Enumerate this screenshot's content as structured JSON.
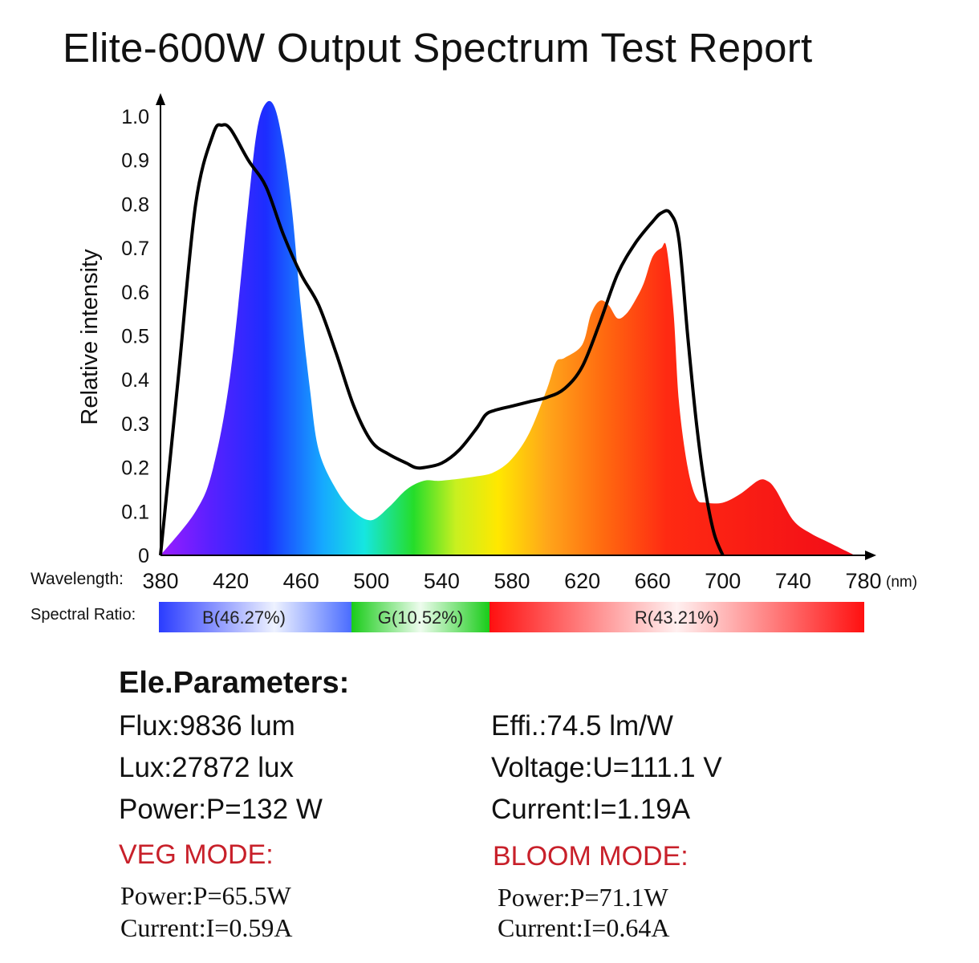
{
  "title": "Elite-600W Output Spectrum Test Report",
  "chart_data": {
    "type": "area",
    "title": "Elite-600W Output Spectrum Test Report",
    "xlabel": "Wavelength:",
    "x_unit": "(nm)",
    "ylabel": "Relative intensity",
    "xlim": [
      380,
      780
    ],
    "ylim": [
      0,
      1.0
    ],
    "x_ticks": [
      380,
      420,
      460,
      500,
      540,
      580,
      620,
      660,
      700,
      740,
      780
    ],
    "y_ticks": [
      0,
      0.1,
      0.2,
      0.3,
      0.4,
      0.5,
      0.6,
      0.7,
      0.8,
      0.9,
      1.0
    ],
    "y_tick_labels": [
      "0",
      "0.1",
      "0.2",
      "0.3",
      "0.4",
      "0.5",
      "0.6",
      "0.7",
      "0.8",
      "0.9",
      "1.0"
    ],
    "series": [
      {
        "style": "filled-rainbow",
        "x": [
          380,
          400,
          410,
          420,
          430,
          435,
          440,
          445,
          450,
          455,
          460,
          465,
          470,
          480,
          490,
          500,
          510,
          520,
          530,
          540,
          560,
          570,
          580,
          590,
          600,
          605,
          610,
          620,
          625,
          630,
          635,
          640,
          645,
          650,
          655,
          660,
          665,
          668,
          672,
          675,
          680,
          685,
          690,
          700,
          710,
          720,
          725,
          730,
          740,
          750,
          760,
          770,
          775
        ],
        "y": [
          0,
          0.1,
          0.2,
          0.42,
          0.8,
          0.97,
          1.03,
          1.02,
          0.93,
          0.78,
          0.56,
          0.38,
          0.24,
          0.15,
          0.1,
          0.08,
          0.11,
          0.15,
          0.17,
          0.17,
          0.18,
          0.19,
          0.22,
          0.28,
          0.38,
          0.44,
          0.45,
          0.48,
          0.55,
          0.58,
          0.57,
          0.54,
          0.55,
          0.58,
          0.62,
          0.68,
          0.7,
          0.7,
          0.55,
          0.35,
          0.2,
          0.13,
          0.12,
          0.12,
          0.14,
          0.17,
          0.17,
          0.15,
          0.08,
          0.05,
          0.03,
          0.01,
          0
        ]
      },
      {
        "style": "black-line",
        "x": [
          380,
          390,
          400,
          410,
          415,
          420,
          430,
          440,
          450,
          460,
          470,
          480,
          490,
          500,
          510,
          520,
          525,
          530,
          540,
          550,
          560,
          565,
          570,
          580,
          590,
          600,
          610,
          620,
          630,
          640,
          650,
          660,
          665,
          670,
          675,
          680,
          685,
          690,
          695,
          700
        ],
        "y": [
          0,
          0.4,
          0.8,
          0.96,
          0.98,
          0.97,
          0.9,
          0.84,
          0.73,
          0.64,
          0.57,
          0.46,
          0.34,
          0.26,
          0.23,
          0.21,
          0.2,
          0.2,
          0.21,
          0.24,
          0.29,
          0.32,
          0.33,
          0.34,
          0.35,
          0.36,
          0.38,
          0.43,
          0.53,
          0.64,
          0.71,
          0.76,
          0.78,
          0.78,
          0.72,
          0.5,
          0.3,
          0.15,
          0.05,
          0
        ]
      }
    ],
    "spectral_ratio": {
      "label": "Spectral Ratio:",
      "segments": [
        {
          "label": "B(46.27%)",
          "color": "#2c3cff"
        },
        {
          "label": "G(10.52%)",
          "color": "#1ed21e"
        },
        {
          "label": "R(43.21%)",
          "color": "#ff1010"
        }
      ]
    }
  },
  "params": {
    "heading": "Ele.Parameters:",
    "left": [
      "Flux:9836 lum",
      "Lux:27872 lux",
      "Power:P=132 W"
    ],
    "right": [
      "Effi.:74.5 lm/W",
      "Voltage:U=111.1 V",
      "Current:I=1.19A"
    ]
  },
  "veg": {
    "title": "VEG MODE:",
    "power": "Power:P=65.5W",
    "current": "Current:I=0.59A"
  },
  "bloom": {
    "title": "BLOOM MODE:",
    "power": "Power:P=71.1W",
    "current": "Current:I=0.64A"
  },
  "colors": {
    "mode_title": "#c8202a",
    "curve": "#000000"
  }
}
